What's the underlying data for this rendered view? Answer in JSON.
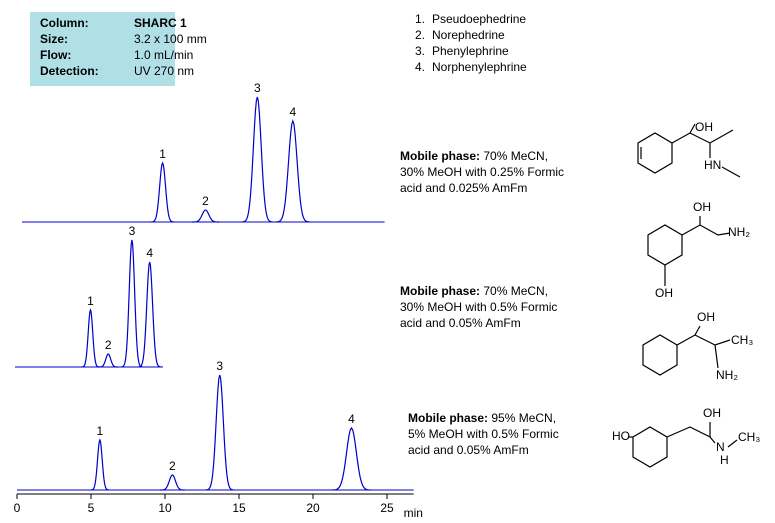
{
  "info_box": {
    "rows": [
      [
        "Column:",
        "SHARC 1"
      ],
      [
        "Size:",
        "3.2 x 100 mm"
      ],
      [
        "Flow:",
        "1.0 mL/min"
      ],
      [
        "Detection:",
        "UV 270 nm"
      ]
    ]
  },
  "compounds": [
    [
      "1.",
      "Pseudoephedrine"
    ],
    [
      "2.",
      "Norephedrine"
    ],
    [
      "3.",
      "Phenylephrine"
    ],
    [
      "4.",
      "Norphenylephrine"
    ]
  ],
  "chart_data": [
    {
      "type": "chromatogram",
      "x": [
        9.5,
        12.4,
        15.9,
        18.3
      ],
      "values": [
        59,
        12,
        125,
        101
      ],
      "peak_labels": [
        "1",
        "2",
        "3",
        "4"
      ],
      "xlim": [
        0,
        24.5
      ],
      "ylim": [
        0,
        130
      ],
      "color": "#0000cc",
      "mobile_phase": {
        "label": "Mobile phase:",
        "lines": [
          " 70% MeCN,",
          "30% MeOH with 0.25% Formic",
          "acid and 0.025% AmFm"
        ]
      }
    },
    {
      "type": "chromatogram",
      "x": [
        5.1,
        6.3,
        7.9,
        9.1
      ],
      "values": [
        57,
        13,
        127,
        105
      ],
      "peak_labels": [
        "1",
        "2",
        "3",
        "4"
      ],
      "xlim": [
        0,
        10
      ],
      "ylim": [
        0,
        130
      ],
      "color": "#0000cc",
      "mobile_phase": {
        "label": "Mobile phase:",
        "lines": [
          " 70% MeCN,",
          "30% MeOH with 0.5% Formic",
          "acid and 0.05% AmFm"
        ]
      }
    },
    {
      "type": "chromatogram",
      "x": [
        5.6,
        10.5,
        13.7,
        22.6
      ],
      "values": [
        50,
        15,
        115,
        62
      ],
      "peak_labels": [
        "1",
        "2",
        "3",
        "4"
      ],
      "xlim": [
        0,
        26.8
      ],
      "ylim": [
        0,
        130
      ],
      "color": "#0000cc",
      "xticks": [
        0,
        5,
        10,
        15,
        20,
        25
      ],
      "xlabel": "min",
      "mobile_phase": {
        "label": "Mobile phase:",
        "lines": [
          " 95% MeCN,",
          "5% MeOH with 0.5% Formic",
          "acid and 0.05% AmFm"
        ]
      }
    }
  ],
  "structures": [
    {
      "labels": [
        "OH",
        "HN"
      ]
    },
    {
      "labels": [
        "OH",
        "NH₂",
        "OH"
      ]
    },
    {
      "labels": [
        "OH",
        "CH₃",
        "NH₂"
      ]
    },
    {
      "labels": [
        "HO",
        "OH",
        "N",
        "H",
        "CH₃"
      ]
    }
  ]
}
